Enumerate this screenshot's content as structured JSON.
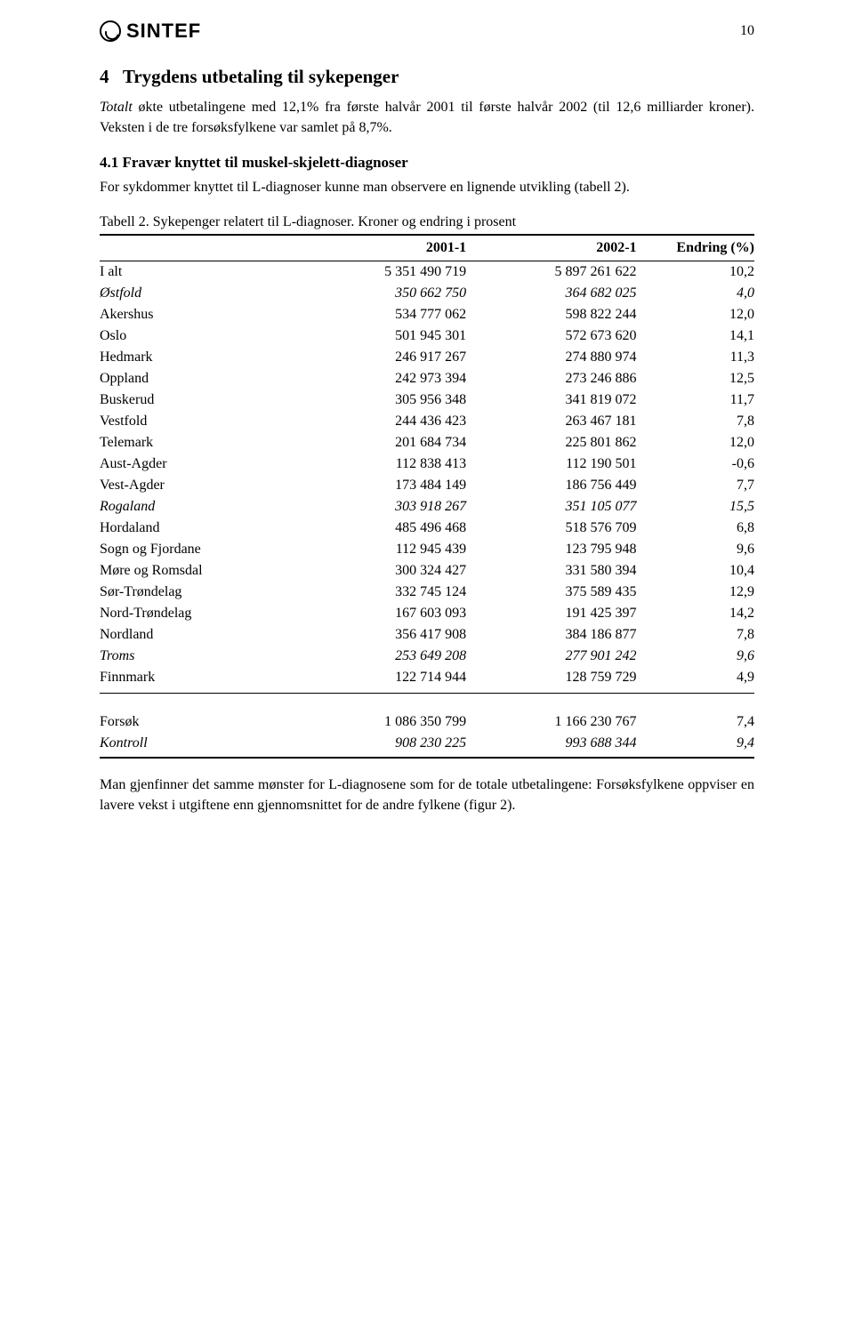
{
  "header": {
    "logo_text": "SINTEF",
    "page_number": "10"
  },
  "section": {
    "number": "4",
    "title": "Trygdens utbetaling til sykepenger",
    "intro_italic_lead": "Totalt",
    "intro_rest": " økte utbetalingene med 12,1% fra første halvår 2001 til første halvår 2002 (til 12,6 milliarder kroner). Veksten i de tre forsøksfylkene var samlet på 8,7%.",
    "sub_number": "4.1",
    "sub_title": "Fravær knyttet til muskel-skjelett-diagnoser",
    "sub_text": "For sykdommer knyttet til L-diagnoser kunne man observere en lignende utvikling (tabell 2).",
    "table_caption": "Tabell 2. Sykepenger relatert til L-diagnoser. Kroner og endring i prosent",
    "closing": "Man gjenfinner det samme mønster for L-diagnosene som for de totale utbetalingene: Forsøksfylkene oppviser en lavere vekst i utgiftene enn gjennomsnittet for de andre fylkene (figur 2)."
  },
  "table": {
    "columns": [
      "",
      "2001-1",
      "2002-1",
      "Endring (%)"
    ],
    "col_widths": [
      "30%",
      "26%",
      "26%",
      "18%"
    ],
    "rows": [
      {
        "label": "I alt",
        "c1": "5 351 490  719",
        "c2": "5 897 261  622",
        "pct": "10,2",
        "style": "plain"
      },
      {
        "label": "Østfold",
        "c1": "350 662  750",
        "c2": "364 682  025",
        "pct": "4,0",
        "style": "italic"
      },
      {
        "label": "Akershus",
        "c1": "534 777  062",
        "c2": "598 822  244",
        "pct": "12,0",
        "style": "plain"
      },
      {
        "label": "Oslo",
        "c1": "501 945  301",
        "c2": "572 673  620",
        "pct": "14,1",
        "style": "plain"
      },
      {
        "label": "Hedmark",
        "c1": "246 917  267",
        "c2": "274 880  974",
        "pct": "11,3",
        "style": "plain"
      },
      {
        "label": "Oppland",
        "c1": "242 973  394",
        "c2": "273 246  886",
        "pct": "12,5",
        "style": "plain"
      },
      {
        "label": "Buskerud",
        "c1": "305 956  348",
        "c2": "341 819  072",
        "pct": "11,7",
        "style": "plain"
      },
      {
        "label": "Vestfold",
        "c1": "244 436  423",
        "c2": "263 467  181",
        "pct": "7,8",
        "style": "bold"
      },
      {
        "label": "Telemark",
        "c1": "201 684  734",
        "c2": "225 801  862",
        "pct": "12,0",
        "style": "plain"
      },
      {
        "label": "Aust-Agder",
        "c1": "112 838  413",
        "c2": "112 190  501",
        "pct": "-0,6",
        "style": "plain"
      },
      {
        "label": "Vest-Agder",
        "c1": "173 484  149",
        "c2": "186 756  449",
        "pct": "7,7",
        "style": "plain"
      },
      {
        "label": "Rogaland",
        "c1": "303 918  267",
        "c2": "351 105  077",
        "pct": "15,5",
        "style": "italic"
      },
      {
        "label": "Hordaland",
        "c1": "485 496  468",
        "c2": "518 576  709",
        "pct": "6,8",
        "style": "bold"
      },
      {
        "label": "Sogn og Fjordane",
        "c1": "112 945  439",
        "c2": "123 795  948",
        "pct": "9,6",
        "style": "plain"
      },
      {
        "label": "Møre og Romsdal",
        "c1": "300 324  427",
        "c2": "331 580  394",
        "pct": "10,4",
        "style": "plain"
      },
      {
        "label": "Sør-Trøndelag",
        "c1": "332 745  124",
        "c2": "375 589  435",
        "pct": "12,9",
        "style": "plain"
      },
      {
        "label": "Nord-Trøndelag",
        "c1": "167 603  093",
        "c2": "191 425  397",
        "pct": "14,2",
        "style": "plain"
      },
      {
        "label": "Nordland",
        "c1": "356 417  908",
        "c2": "384 186  877",
        "pct": "7,8",
        "style": "bold"
      },
      {
        "label": "Troms",
        "c1": "253 649  208",
        "c2": "277 901  242",
        "pct": "9,6",
        "style": "italic"
      },
      {
        "label": "Finnmark",
        "c1": "122 714  944",
        "c2": "128 759  729",
        "pct": "4,9",
        "style": "plain"
      }
    ],
    "summary": [
      {
        "label": "Forsøk",
        "c1": "1 086 350 799",
        "c2": "1 166 230 767",
        "pct": "7,4",
        "style": "bold"
      },
      {
        "label": "Kontroll",
        "c1": "908 230 225",
        "c2": "993 688 344",
        "pct": "9,4",
        "style": "italic"
      }
    ]
  }
}
